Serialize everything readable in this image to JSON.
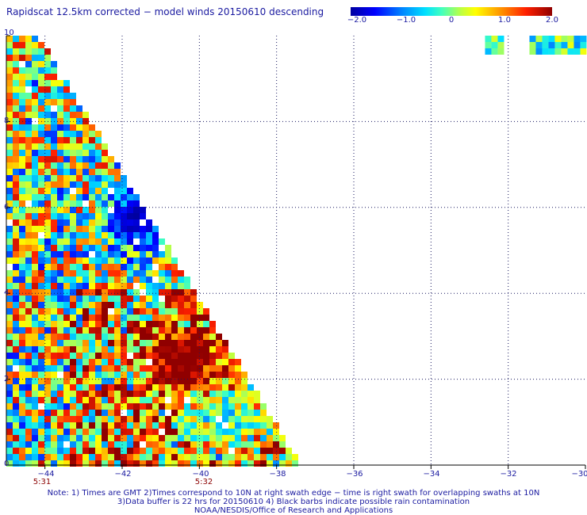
{
  "title": "Rapidscat 12.5km corrected − model winds 20150610 descending",
  "colorbar": {
    "ticks": [
      "−2.0",
      "−1.0",
      "0",
      "1.0",
      "2.0"
    ],
    "min": -2.0,
    "max": 2.0
  },
  "x_axis": {
    "ticks": [
      "−44",
      "−42",
      "−40",
      "−38",
      "−36",
      "−34",
      "−32",
      "−30"
    ],
    "values": [
      -44,
      -42,
      -40,
      -38,
      -36,
      -34,
      -32,
      -30
    ],
    "range": [
      -45,
      -30
    ]
  },
  "y_axis": {
    "ticks": [
      "0",
      "2",
      "4",
      "6",
      "8",
      "10"
    ],
    "values": [
      0,
      2,
      4,
      6,
      8,
      10
    ],
    "range": [
      0,
      10
    ]
  },
  "time_labels": [
    {
      "text": "5:31",
      "lon": -44
    },
    {
      "text": "5:32",
      "lon": -40
    }
  ],
  "notes": [
    "Note: 1) Times are GMT 2)Times correspond to 10N at right swath edge − time is right swath for overlapping swaths at 10N",
    "3)Data buffer is 22 hrs for 20150610 4) Black barbs indicate possible rain contamination",
    "NOAA/NESDIS/Office of Research and Applications"
  ],
  "chart_data": {
    "type": "heatmap",
    "description_variable": "corrected minus model wind speed difference",
    "xlim": [
      -45,
      -30
    ],
    "ylim": [
      0,
      10
    ],
    "value_range": [
      -2.0,
      2.0
    ],
    "grid": true,
    "swath": {
      "left_lon": -45,
      "top_edge_lon_at_lat10": -44.2,
      "bottom_edge_lon_at_lat0": -37.4
    },
    "features": [
      {
        "label": "negative anomaly",
        "lon": -41.7,
        "lat": 5.8,
        "value": -1.9
      },
      {
        "label": "positive anomaly",
        "lon": -40.5,
        "lat": 2.5,
        "value": 2.0
      },
      {
        "label": "negative anomaly",
        "lon": -39.4,
        "lat": 1.2,
        "value": -0.8
      }
    ],
    "corner_patch": {
      "lon_range": [
        -32.6,
        -30
      ],
      "lat_range": [
        9.6,
        10
      ]
    }
  }
}
